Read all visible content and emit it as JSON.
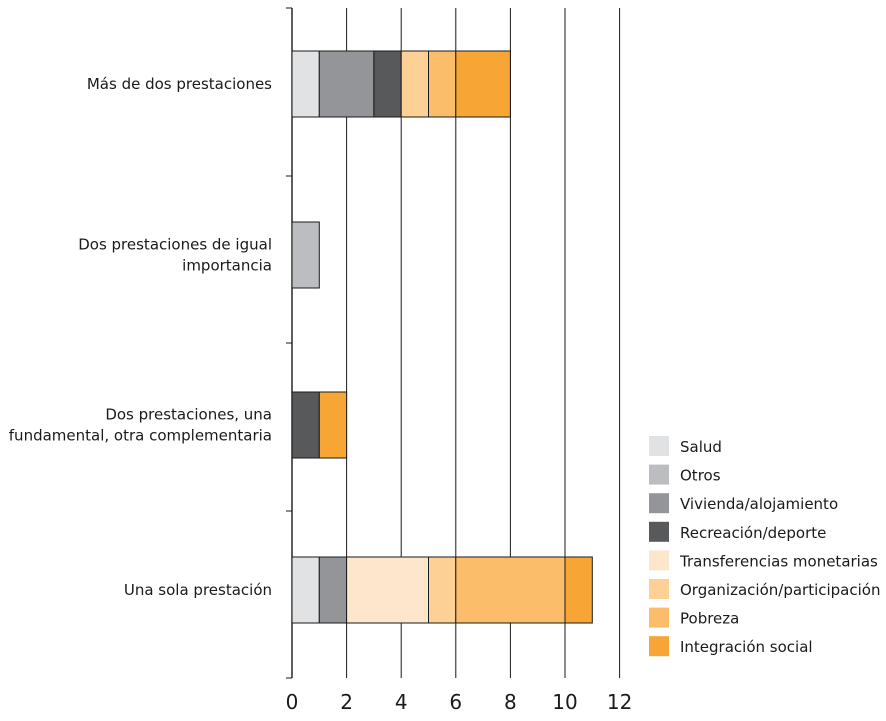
{
  "chart_data": {
    "type": "bar",
    "orientation": "horizontal",
    "stacked": true,
    "categories": [
      "Más de dos prestaciones",
      "Dos prestaciones de igual importancia",
      "Dos prestaciones, una fundamental, otra complementaria",
      "Una sola prestación"
    ],
    "category_lines": [
      [
        "Más de dos prestaciones"
      ],
      [
        "Dos prestaciones de igual",
        "importancia"
      ],
      [
        "Dos prestaciones, una",
        "fundamental, otra complementaria"
      ],
      [
        "Una sola prestación"
      ]
    ],
    "series": [
      {
        "name": "Salud",
        "color": "#e1e2e4",
        "values": [
          1,
          0,
          0,
          1
        ]
      },
      {
        "name": "Otros",
        "color": "#bcbdc0",
        "values": [
          0,
          1,
          0,
          0
        ]
      },
      {
        "name": "Vivienda/alojamiento",
        "color": "#939598",
        "values": [
          2,
          0,
          0,
          1
        ]
      },
      {
        "name": "Recreación/deporte",
        "color": "#58595b",
        "values": [
          1,
          0,
          1,
          0
        ]
      },
      {
        "name": "Transferencias monetarias",
        "color": "#fde7cc",
        "values": [
          0,
          0,
          0,
          3
        ]
      },
      {
        "name": "Organización/participación",
        "color": "#fdd095",
        "values": [
          1,
          0,
          0,
          1
        ]
      },
      {
        "name": "Pobreza",
        "color": "#fbbd6a",
        "values": [
          1,
          0,
          0,
          4
        ]
      },
      {
        "name": "Integración social",
        "color": "#f7a535",
        "values": [
          2,
          0,
          1,
          1
        ]
      }
    ],
    "xlim": [
      0,
      12
    ],
    "xticks": [
      "0",
      "2",
      "4",
      "6",
      "8",
      "10",
      "12"
    ],
    "grid": true,
    "legend_position": "bottom-right",
    "title": "",
    "xlabel": "",
    "ylabel": ""
  }
}
